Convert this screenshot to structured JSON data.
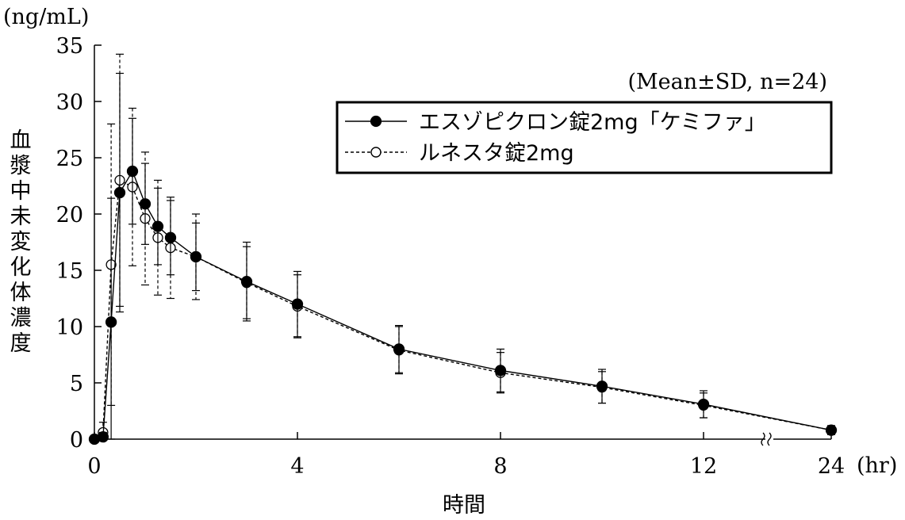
{
  "chart_data": {
    "type": "line",
    "y_unit_label": "(ng/mL)",
    "x_unit_label": "(hr)",
    "ylabel": "血漿中未変化体濃度",
    "xlabel": "時間",
    "annotation": "(Mean±SD, n=24)",
    "ylim": [
      0,
      35
    ],
    "y_ticks": [
      "0",
      "5",
      "10",
      "15",
      "20",
      "25",
      "30",
      "35"
    ],
    "x_ticks": [
      {
        "value": 0,
        "label": "0"
      },
      {
        "value": 4,
        "label": "4"
      },
      {
        "value": 8,
        "label": "8"
      },
      {
        "value": 12,
        "label": "12"
      },
      {
        "value": 24,
        "label": "24"
      }
    ],
    "x_axis_break": "between 12 and 24",
    "legend_position": "top-right",
    "series": [
      {
        "name": "エスゾピクロン錠2mg「ケミファ」",
        "marker": "filled-circle",
        "line_style": "solid",
        "color": "#000000",
        "x": [
          0,
          0.17,
          0.33,
          0.5,
          0.75,
          1,
          1.25,
          1.5,
          2,
          3,
          4,
          6,
          8,
          10,
          12,
          24
        ],
        "y": [
          0,
          0.2,
          10.4,
          21.9,
          23.8,
          20.9,
          18.9,
          17.9,
          16.2,
          14.0,
          12.0,
          8.0,
          6.1,
          4.7,
          3.1,
          0.8
        ],
        "sd": [
          0,
          0.4,
          11.0,
          10.6,
          4.7,
          3.6,
          3.4,
          3.3,
          3.0,
          3.5,
          2.9,
          2.1,
          1.9,
          1.5,
          1.2,
          0.4
        ]
      },
      {
        "name": "ルネスタ錠2mg",
        "marker": "open-circle",
        "line_style": "dashed",
        "color": "#000000",
        "x": [
          0,
          0.17,
          0.33,
          0.5,
          0.75,
          1,
          1.25,
          1.5,
          2,
          3,
          4,
          6,
          8,
          10,
          12,
          24
        ],
        "y": [
          0,
          0.6,
          15.5,
          23.0,
          22.4,
          19.6,
          17.9,
          17.0,
          16.2,
          13.9,
          11.8,
          7.9,
          5.9,
          4.6,
          3.0,
          0.8
        ],
        "sd": [
          0,
          0.9,
          12.5,
          11.2,
          7.0,
          5.9,
          5.1,
          4.5,
          3.8,
          3.2,
          2.8,
          2.1,
          1.8,
          1.4,
          1.1,
          0.4
        ]
      }
    ]
  }
}
